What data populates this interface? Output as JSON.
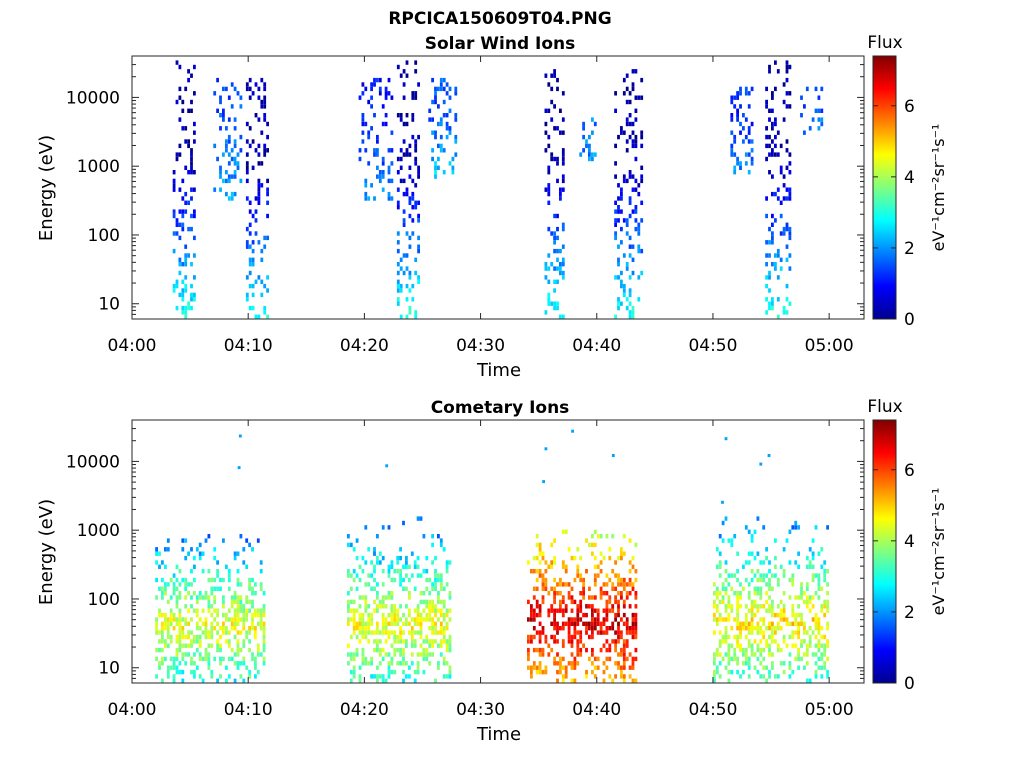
{
  "figure_title": "RPCICA150609T04.PNG",
  "x_label": "Time",
  "y_label": "Energy (eV)",
  "colorbar": {
    "title": "Flux",
    "label": "eV⁻¹cm⁻²sr⁻¹s⁻¹",
    "ticks": [
      "0",
      "2",
      "4",
      "6"
    ],
    "range": [
      0,
      7.4
    ],
    "colormap": "jet"
  },
  "x_ticks": [
    "04:00",
    "04:10",
    "04:20",
    "04:30",
    "04:40",
    "04:50",
    "05:00"
  ],
  "y_ticks": [
    "10",
    "100",
    "1000",
    "10000"
  ],
  "chart_data": [
    {
      "type": "heatmap",
      "title": "Solar Wind Ions",
      "xlabel": "Time",
      "ylabel": "Energy (eV)",
      "x_range": [
        "04:00",
        "05:03"
      ],
      "y_range_eV": [
        6,
        40000
      ],
      "y_scale": "log",
      "zlim": [
        0,
        7.4
      ],
      "grid": false,
      "bursts": [
        {
          "start_min": 3.5,
          "end_min": 5.3,
          "e_min": 6,
          "e_max": 35000,
          "flux_low_e": 3.0,
          "flux_high_e": 0.3
        },
        {
          "start_min": 7.0,
          "end_min": 9.5,
          "e_min": 300,
          "e_max": 20000,
          "flux_low_e": 2.2,
          "flux_high_e": 1.5
        },
        {
          "start_min": 9.8,
          "end_min": 11.7,
          "e_min": 6,
          "e_max": 20000,
          "flux_low_e": 3.0,
          "flux_high_e": 0.3
        },
        {
          "start_min": 19.5,
          "end_min": 22.5,
          "e_min": 300,
          "e_max": 20000,
          "flux_low_e": 2.0,
          "flux_high_e": 1.0
        },
        {
          "start_min": 22.8,
          "end_min": 24.6,
          "e_min": 6,
          "e_max": 35000,
          "flux_low_e": 3.0,
          "flux_high_e": 0.3
        },
        {
          "start_min": 25.5,
          "end_min": 28.0,
          "e_min": 700,
          "e_max": 20000,
          "flux_low_e": 2.5,
          "flux_high_e": 1.5
        },
        {
          "start_min": 35.5,
          "end_min": 37.2,
          "e_min": 6,
          "e_max": 25000,
          "flux_low_e": 3.0,
          "flux_high_e": 0.3
        },
        {
          "start_min": 38.5,
          "end_min": 40.0,
          "e_min": 1000,
          "e_max": 6000,
          "flux_low_e": 2.0,
          "flux_high_e": 1.8
        },
        {
          "start_min": 41.5,
          "end_min": 43.8,
          "e_min": 6,
          "e_max": 25000,
          "flux_low_e": 3.0,
          "flux_high_e": 0.3
        },
        {
          "start_min": 51.5,
          "end_min": 53.5,
          "e_min": 800,
          "e_max": 15000,
          "flux_low_e": 2.0,
          "flux_high_e": 1.2
        },
        {
          "start_min": 54.5,
          "end_min": 56.7,
          "e_min": 6,
          "e_max": 35000,
          "flux_low_e": 3.0,
          "flux_high_e": 0.3
        },
        {
          "start_min": 57.5,
          "end_min": 59.5,
          "e_min": 2000,
          "e_max": 15000,
          "flux_low_e": 2.0,
          "flux_high_e": 1.5
        }
      ]
    },
    {
      "type": "heatmap",
      "title": "Cometary Ions",
      "xlabel": "Time",
      "ylabel": "Energy (eV)",
      "x_range": [
        "04:00",
        "05:03"
      ],
      "y_range_eV": [
        6,
        40000
      ],
      "y_scale": "log",
      "zlim": [
        0,
        7.4
      ],
      "grid": false,
      "bursts": [
        {
          "start_min": 2.0,
          "end_min": 11.5,
          "e_min": 6,
          "e_max": 900,
          "peak_e": 40,
          "peak_flux": 4.5
        },
        {
          "start_min": 18.5,
          "end_min": 27.5,
          "e_min": 6,
          "e_max": 1500,
          "peak_e": 40,
          "peak_flux": 4.6
        },
        {
          "start_min": 34.0,
          "end_min": 43.5,
          "e_min": 6,
          "e_max": 1000,
          "peak_e": 45,
          "peak_flux": 6.8
        },
        {
          "start_min": 50.0,
          "end_min": 60.0,
          "e_min": 6,
          "e_max": 1500,
          "peak_e": 45,
          "peak_flux": 4.8
        }
      ],
      "sparse_high_energy_points": [
        {
          "t_min": 9.2,
          "e": 23000
        },
        {
          "t_min": 9.1,
          "e": 8000
        },
        {
          "t_min": 21.8,
          "e": 8500
        },
        {
          "t_min": 35.5,
          "e": 15000
        },
        {
          "t_min": 35.3,
          "e": 5000
        },
        {
          "t_min": 37.8,
          "e": 27000
        },
        {
          "t_min": 41.3,
          "e": 12000
        },
        {
          "t_min": 51.0,
          "e": 21000
        },
        {
          "t_min": 50.7,
          "e": 2500
        },
        {
          "t_min": 54.0,
          "e": 9000
        },
        {
          "t_min": 54.7,
          "e": 12000
        }
      ]
    }
  ]
}
